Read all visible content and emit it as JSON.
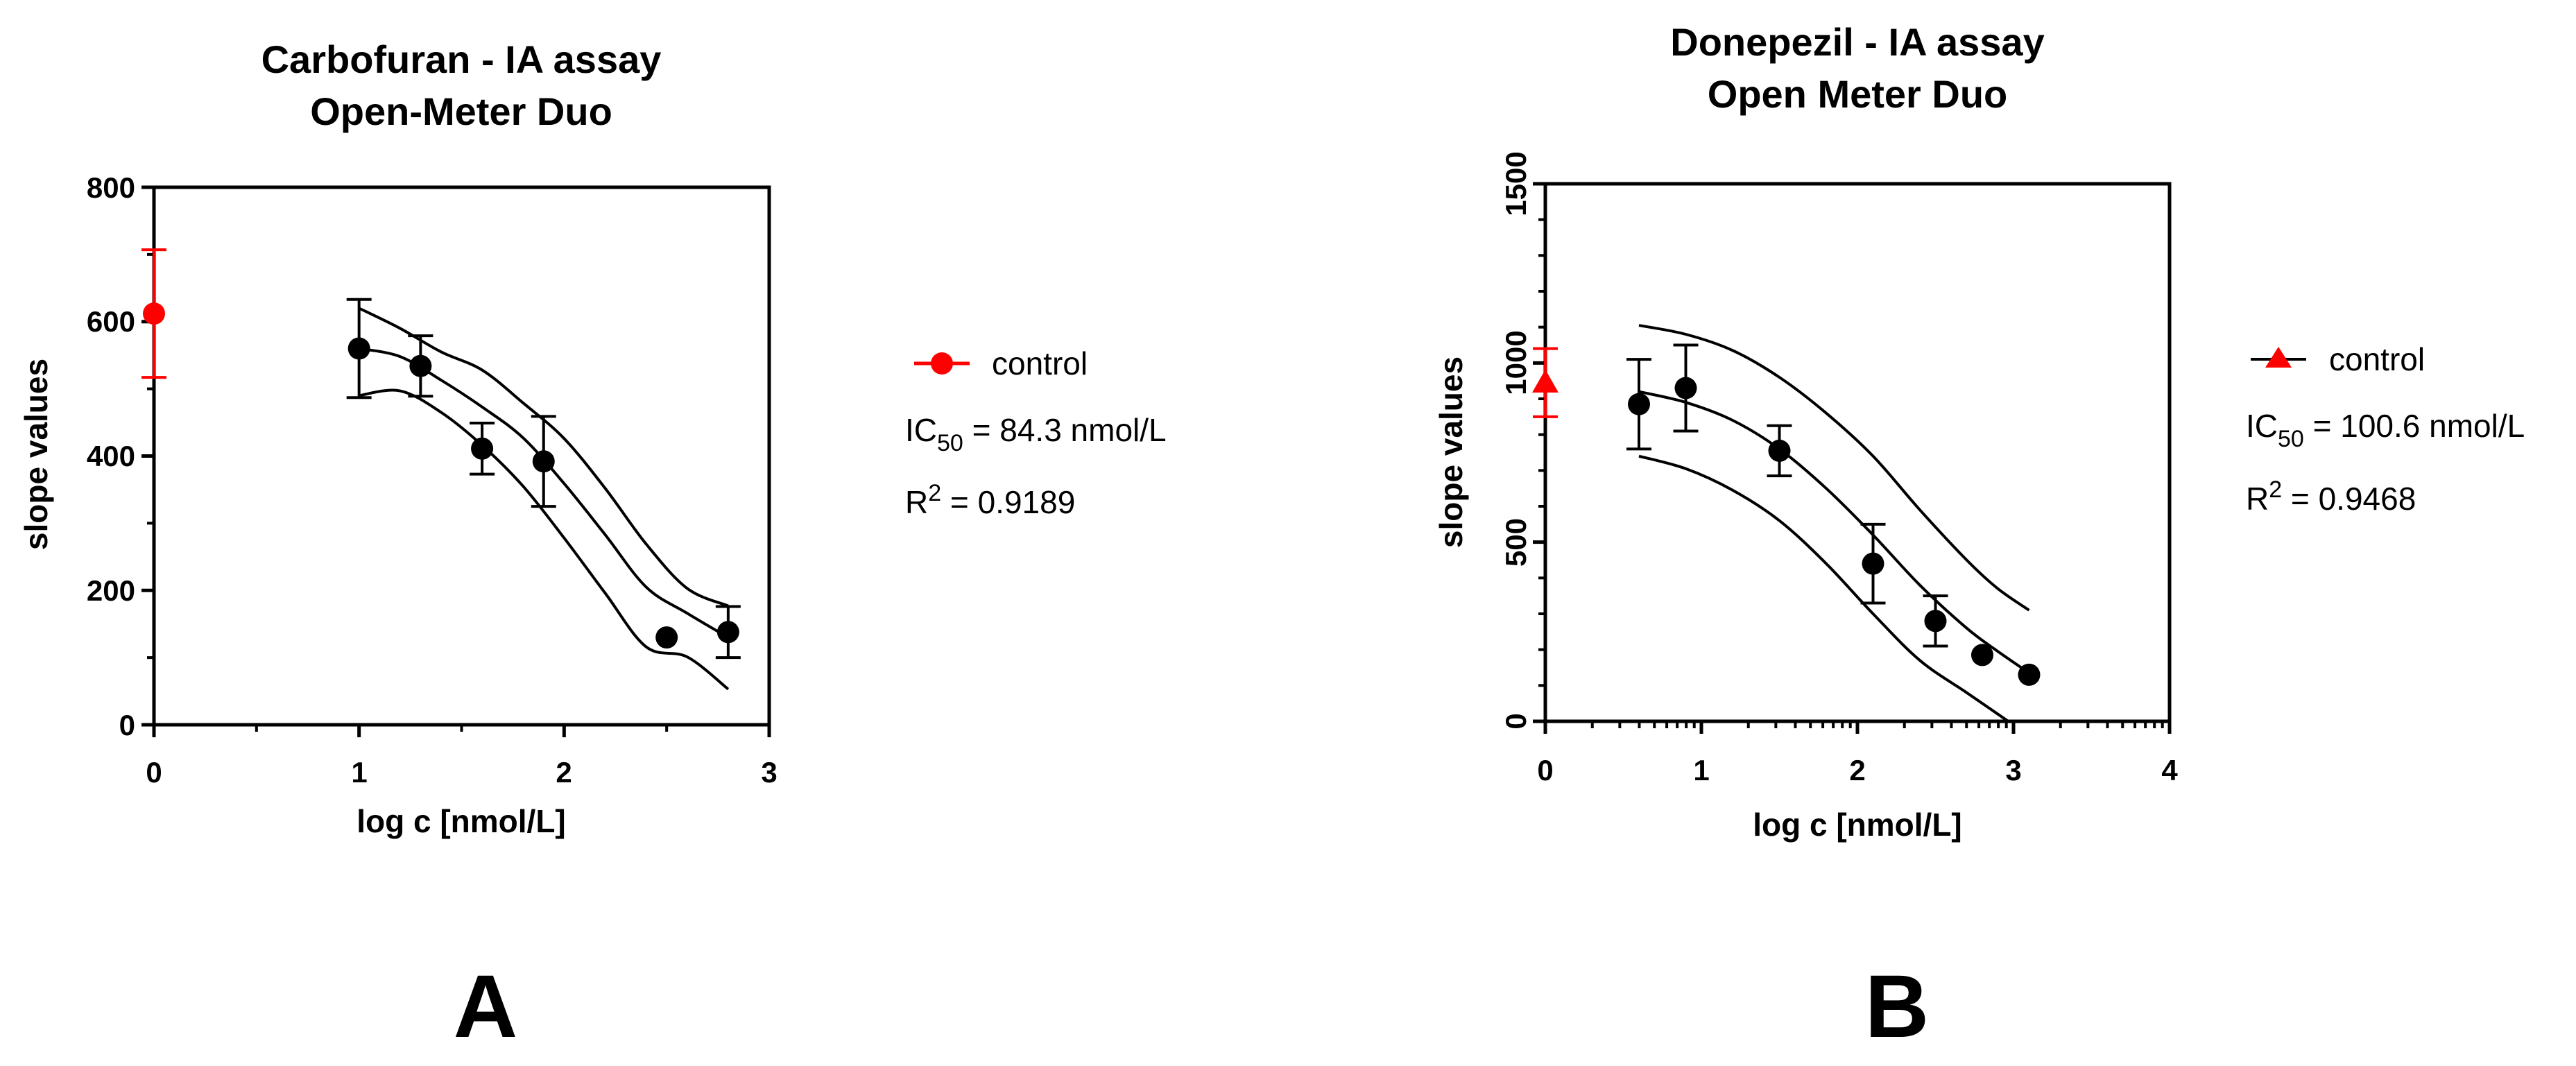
{
  "chart_data": [
    {
      "type": "scatter",
      "title": "Carbofuran - IA assay",
      "subtitle": "Open-Meter Duo",
      "xlabel": "log c [nmol/L]",
      "ylabel": "slope values",
      "xlim": [
        0,
        3
      ],
      "ylim": [
        0,
        800
      ],
      "x_ticks": [
        "0",
        "1",
        "2",
        "3"
      ],
      "y_ticks": [
        "0",
        "200",
        "400",
        "600",
        "800"
      ],
      "grid": false,
      "legend_position": "right",
      "panel_label": "A",
      "ic50_label": "IC",
      "ic50_sub": "50",
      "ic50_value": " = 84.3 nmol/L",
      "r2_label": "R",
      "r2_sup": "2",
      "r2_value": " = 0.9189",
      "series": [
        {
          "name": "control",
          "marker": "circle",
          "color": "#ff0000",
          "points": [
            {
              "x": 0,
              "y": 612,
              "err": 95
            }
          ]
        },
        {
          "name": "",
          "marker": "circle",
          "color": "#000000",
          "points": [
            {
              "x": 1.0,
              "y": 560,
              "err": 73
            },
            {
              "x": 1.3,
              "y": 534,
              "err": 45
            },
            {
              "x": 1.6,
              "y": 411,
              "err": 38
            },
            {
              "x": 1.9,
              "y": 392,
              "err": 67
            },
            {
              "x": 2.5,
              "y": 130,
              "err": 0
            },
            {
              "x": 2.8,
              "y": 138,
              "err": 38
            }
          ]
        }
      ],
      "curves": {
        "fit": [
          [
            1.0,
            560
          ],
          [
            1.2,
            548
          ],
          [
            1.4,
            513
          ],
          [
            1.6,
            473
          ],
          [
            1.8,
            427
          ],
          [
            2.0,
            359
          ],
          [
            2.2,
            283
          ],
          [
            2.4,
            205
          ],
          [
            2.6,
            166
          ],
          [
            2.8,
            130
          ]
        ],
        "upper": [
          [
            1.0,
            620
          ],
          [
            1.2,
            590
          ],
          [
            1.4,
            555
          ],
          [
            1.6,
            528
          ],
          [
            1.8,
            479
          ],
          [
            2.0,
            426
          ],
          [
            2.2,
            352
          ],
          [
            2.4,
            269
          ],
          [
            2.6,
            203
          ],
          [
            2.8,
            177
          ]
        ],
        "lower": [
          [
            1.0,
            490
          ],
          [
            1.2,
            497
          ],
          [
            1.4,
            465
          ],
          [
            1.6,
            416
          ],
          [
            1.8,
            355
          ],
          [
            2.0,
            278
          ],
          [
            2.2,
            196
          ],
          [
            2.4,
            116
          ],
          [
            2.6,
            101
          ],
          [
            2.8,
            53
          ]
        ]
      }
    },
    {
      "type": "scatter",
      "title": "Donepezil - IA assay",
      "subtitle": "Open Meter Duo",
      "xlabel": "log c [nmol/L]",
      "ylabel": "slope values",
      "xlim": [
        0,
        4
      ],
      "ylim": [
        0,
        1500
      ],
      "x_ticks": [
        "0",
        "1",
        "2",
        "3",
        "4"
      ],
      "y_ticks": [
        "0",
        "500",
        "1000",
        "1500"
      ],
      "grid": false,
      "legend_position": "right",
      "panel_label": "B",
      "ic50_label": "IC",
      "ic50_sub": "50",
      "ic50_value": " = 100.6 nmol/L",
      "r2_label": "R",
      "r2_sup": "2",
      "r2_value": " = 0.9468",
      "series": [
        {
          "name": "control",
          "marker": "triangle",
          "color": "#ff0000",
          "points": [
            {
              "x": 0,
              "y": 945,
              "err": 95
            }
          ]
        },
        {
          "name": "",
          "marker": "circle",
          "color": "#000000",
          "points": [
            {
              "x": 0.6,
              "y": 885,
              "err": 125
            },
            {
              "x": 0.9,
              "y": 930,
              "err": 120
            },
            {
              "x": 1.5,
              "y": 755,
              "err": 70
            },
            {
              "x": 2.1,
              "y": 440,
              "err": 110
            },
            {
              "x": 2.5,
              "y": 280,
              "err": 70
            },
            {
              "x": 2.8,
              "y": 185,
              "err": 0
            },
            {
              "x": 3.1,
              "y": 130,
              "err": 0
            }
          ]
        }
      ],
      "curves": {
        "fit": [
          [
            0.6,
            920
          ],
          [
            0.9,
            890
          ],
          [
            1.2,
            840
          ],
          [
            1.5,
            760
          ],
          [
            1.8,
            650
          ],
          [
            2.1,
            520
          ],
          [
            2.4,
            380
          ],
          [
            2.7,
            260
          ],
          [
            2.9,
            195
          ],
          [
            3.1,
            135
          ]
        ],
        "upper": [
          [
            0.6,
            1105
          ],
          [
            0.9,
            1080
          ],
          [
            1.2,
            1035
          ],
          [
            1.5,
            960
          ],
          [
            1.8,
            860
          ],
          [
            2.1,
            740
          ],
          [
            2.4,
            590
          ],
          [
            2.7,
            450
          ],
          [
            2.9,
            370
          ],
          [
            3.1,
            310
          ]
        ],
        "lower": [
          [
            0.6,
            740
          ],
          [
            0.9,
            705
          ],
          [
            1.2,
            645
          ],
          [
            1.5,
            560
          ],
          [
            1.8,
            440
          ],
          [
            2.1,
            300
          ],
          [
            2.4,
            170
          ],
          [
            2.7,
            80
          ],
          [
            2.9,
            20
          ],
          [
            3.1,
            -40
          ]
        ]
      }
    }
  ]
}
